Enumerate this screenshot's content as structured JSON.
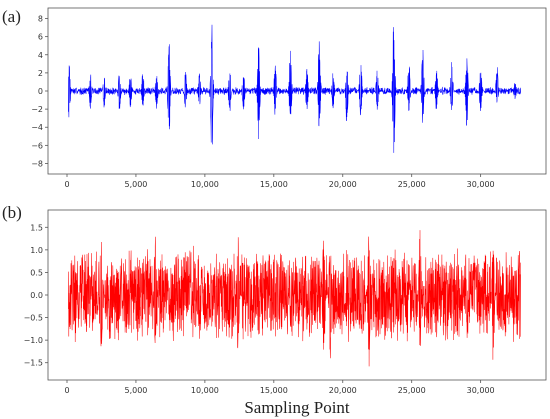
{
  "xlabel": "Sampling Point",
  "chart_data": [
    {
      "type": "line",
      "panel": "(a)",
      "xlim": [
        0,
        33000
      ],
      "ylim": [
        -8.5,
        8.5
      ],
      "xticks": [
        0,
        5000,
        10000,
        15000,
        20000,
        25000,
        30000
      ],
      "xtick_labels": [
        "0",
        "5,000",
        "10,000",
        "15,000",
        "20,000",
        "25,000",
        "30,000"
      ],
      "yticks": [
        -8,
        -6,
        -4,
        -2,
        0,
        2,
        4,
        6,
        8
      ],
      "ytick_labels": [
        "−8",
        "−6",
        "−4",
        "−2",
        "0",
        "2",
        "4",
        "6",
        "8"
      ],
      "color": "#0000ff",
      "series_points": 33000,
      "base_noise": 0.45,
      "bursts": [
        {
          "x": 150,
          "max": 3.0,
          "min": -3.2
        },
        {
          "x": 1700,
          "max": 2.0,
          "min": -2.0
        },
        {
          "x": 2700,
          "max": 1.9,
          "min": -1.9
        },
        {
          "x": 3800,
          "max": 2.1,
          "min": -2.2
        },
        {
          "x": 4600,
          "max": 2.0,
          "min": -2.0
        },
        {
          "x": 5500,
          "max": 2.1,
          "min": -2.0
        },
        {
          "x": 6500,
          "max": 2.4,
          "min": -2.2
        },
        {
          "x": 7400,
          "max": 5.6,
          "min": -5.8
        },
        {
          "x": 8600,
          "max": 2.2,
          "min": -2.0
        },
        {
          "x": 9600,
          "max": 2.0,
          "min": -1.8
        },
        {
          "x": 10500,
          "max": 7.6,
          "min": -8.1
        },
        {
          "x": 11800,
          "max": 2.8,
          "min": -2.4
        },
        {
          "x": 12800,
          "max": 2.4,
          "min": -2.2
        },
        {
          "x": 13900,
          "max": 5.2,
          "min": -5.4
        },
        {
          "x": 15100,
          "max": 3.0,
          "min": -3.0
        },
        {
          "x": 16200,
          "max": 4.8,
          "min": -3.8
        },
        {
          "x": 17400,
          "max": 2.5,
          "min": -2.3
        },
        {
          "x": 18300,
          "max": 5.7,
          "min": -4.8
        },
        {
          "x": 19300,
          "max": 2.2,
          "min": -2.0
        },
        {
          "x": 20300,
          "max": 2.6,
          "min": -4.1
        },
        {
          "x": 21300,
          "max": 3.6,
          "min": -3.0
        },
        {
          "x": 22500,
          "max": 2.4,
          "min": -2.2
        },
        {
          "x": 23700,
          "max": 7.9,
          "min": -8.0
        },
        {
          "x": 24800,
          "max": 3.4,
          "min": -2.5
        },
        {
          "x": 25800,
          "max": 5.5,
          "min": -3.8
        },
        {
          "x": 26800,
          "max": 2.7,
          "min": -2.3
        },
        {
          "x": 27900,
          "max": 3.6,
          "min": -2.3
        },
        {
          "x": 29000,
          "max": 4.0,
          "min": -4.4
        },
        {
          "x": 30000,
          "max": 3.2,
          "min": -2.3
        },
        {
          "x": 31200,
          "max": 3.0,
          "min": -1.5
        },
        {
          "x": 32500,
          "max": 1.1,
          "min": -1.0
        }
      ]
    },
    {
      "type": "line",
      "panel": "(b)",
      "xlim": [
        0,
        33000
      ],
      "ylim": [
        -1.75,
        1.75
      ],
      "xticks": [
        0,
        5000,
        10000,
        15000,
        20000,
        25000,
        30000
      ],
      "xtick_labels": [
        "0",
        "5,000",
        "10,000",
        "15,000",
        "20,000",
        "25,000",
        "30,000"
      ],
      "yticks": [
        -1.5,
        -1.0,
        -0.5,
        0.0,
        0.5,
        1.0,
        1.5
      ],
      "ytick_labels": [
        "−1.5",
        "−1.0",
        "−0.5",
        "0.0",
        "0.5",
        "1.0",
        "1.5"
      ],
      "color": "#ff0000",
      "series_points": 33000,
      "base_noise": 1.1,
      "bursts": [
        {
          "x": 2500,
          "max": 1.3,
          "min": -1.35
        },
        {
          "x": 6400,
          "max": 1.4,
          "min": -1.3
        },
        {
          "x": 12400,
          "max": 1.35,
          "min": -1.4
        },
        {
          "x": 18600,
          "max": 1.4,
          "min": -1.3
        },
        {
          "x": 19100,
          "max": 1.3,
          "min": -1.45
        },
        {
          "x": 21900,
          "max": 1.45,
          "min": -1.62
        },
        {
          "x": 25600,
          "max": 1.68,
          "min": -1.3
        },
        {
          "x": 30900,
          "max": 1.2,
          "min": -1.45
        }
      ]
    }
  ]
}
